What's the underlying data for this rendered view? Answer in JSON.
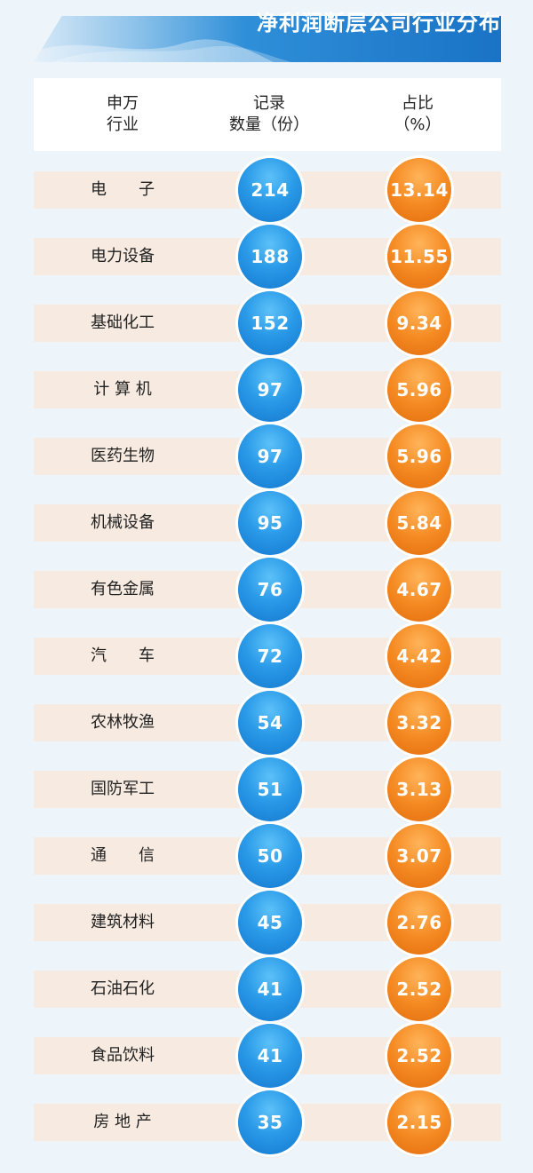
{
  "title": "净利润断层公司行业分布",
  "headers": {
    "industry": [
      "申万",
      "行业"
    ],
    "count": [
      "记录",
      "数量（份）"
    ],
    "percent": [
      "占比",
      "（%）"
    ]
  },
  "colors": {
    "count_bubble": "#2a9ae8",
    "percent_bubble": "#f58a22",
    "row_bg": "#f7ebe1",
    "banner": "#1a73c6"
  },
  "chart_data": {
    "type": "table",
    "title": "净利润断层公司行业分布",
    "columns": [
      "申万行业",
      "记录数量（份）",
      "占比（%）"
    ],
    "rows": [
      {
        "industry": "电　　子",
        "count": "214",
        "percent": "13.14"
      },
      {
        "industry": "电力设备",
        "count": "188",
        "percent": "11.55"
      },
      {
        "industry": "基础化工",
        "count": "152",
        "percent": "9.34"
      },
      {
        "industry": "计 算 机",
        "count": "97",
        "percent": "5.96"
      },
      {
        "industry": "医药生物",
        "count": "97",
        "percent": "5.96"
      },
      {
        "industry": "机械设备",
        "count": "95",
        "percent": "5.84"
      },
      {
        "industry": "有色金属",
        "count": "76",
        "percent": "4.67"
      },
      {
        "industry": "汽　　车",
        "count": "72",
        "percent": "4.42"
      },
      {
        "industry": "农林牧渔",
        "count": "54",
        "percent": "3.32"
      },
      {
        "industry": "国防军工",
        "count": "51",
        "percent": "3.13"
      },
      {
        "industry": "通　　信",
        "count": "50",
        "percent": "3.07"
      },
      {
        "industry": "建筑材料",
        "count": "45",
        "percent": "2.76"
      },
      {
        "industry": "石油石化",
        "count": "41",
        "percent": "2.52"
      },
      {
        "industry": "食品饮料",
        "count": "41",
        "percent": "2.52"
      },
      {
        "industry": "房 地 产",
        "count": "35",
        "percent": "2.15"
      }
    ]
  }
}
